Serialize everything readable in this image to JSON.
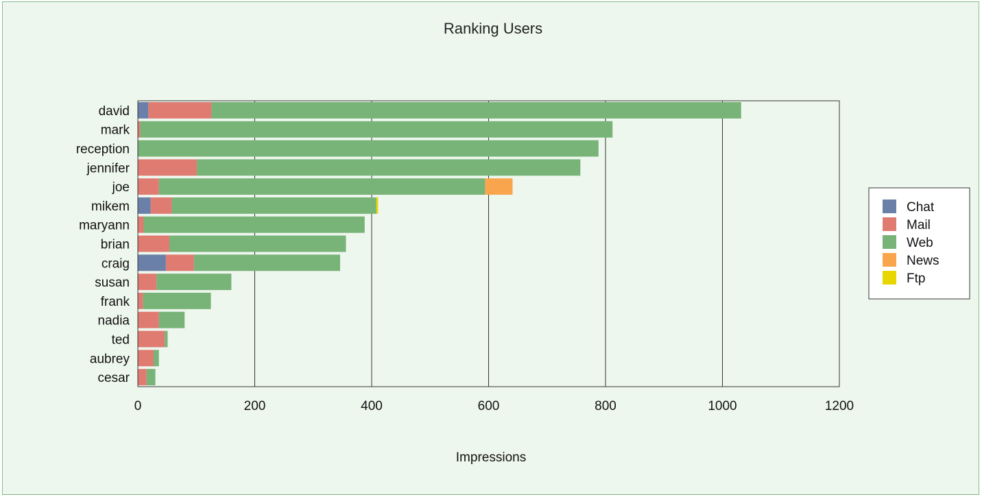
{
  "chart_data": {
    "type": "bar",
    "orientation": "horizontal",
    "stacked": true,
    "title": "Ranking Users",
    "xlabel": "Impressions",
    "ylabel": "",
    "xlim": [
      0,
      1200
    ],
    "xticks": [
      "0",
      "200",
      "400",
      "600",
      "800",
      "1000",
      "1200"
    ],
    "grid": "vertical",
    "legend_position": "right",
    "categories": [
      "david",
      "mark",
      "reception",
      "jennifer",
      "joe",
      "mikem",
      "maryann",
      "brian",
      "craig",
      "susan",
      "frank",
      "nadia",
      "ted",
      "aubrey",
      "cesar"
    ],
    "series": [
      {
        "name": "Chat",
        "color": "#6b80a8",
        "values": [
          18,
          0,
          0,
          0,
          0,
          22,
          0,
          0,
          48,
          0,
          0,
          0,
          0,
          0,
          0
        ]
      },
      {
        "name": "Mail",
        "color": "#e07b72",
        "values": [
          108,
          4,
          0,
          101,
          36,
          36,
          10,
          54,
          48,
          32,
          9,
          36,
          46,
          27,
          15
        ]
      },
      {
        "name": "Web",
        "color": "#78b378",
        "values": [
          906,
          808,
          788,
          656,
          558,
          350,
          378,
          302,
          250,
          128,
          116,
          44,
          5,
          9,
          15
        ]
      },
      {
        "name": "News",
        "color": "#f9a54e",
        "values": [
          0,
          0,
          0,
          0,
          47,
          0,
          0,
          0,
          0,
          0,
          0,
          0,
          0,
          0,
          0
        ]
      },
      {
        "name": "Ftp",
        "color": "#e8d600",
        "values": [
          0,
          0,
          0,
          0,
          0,
          3,
          0,
          0,
          0,
          0,
          0,
          0,
          0,
          0,
          0
        ]
      }
    ]
  }
}
